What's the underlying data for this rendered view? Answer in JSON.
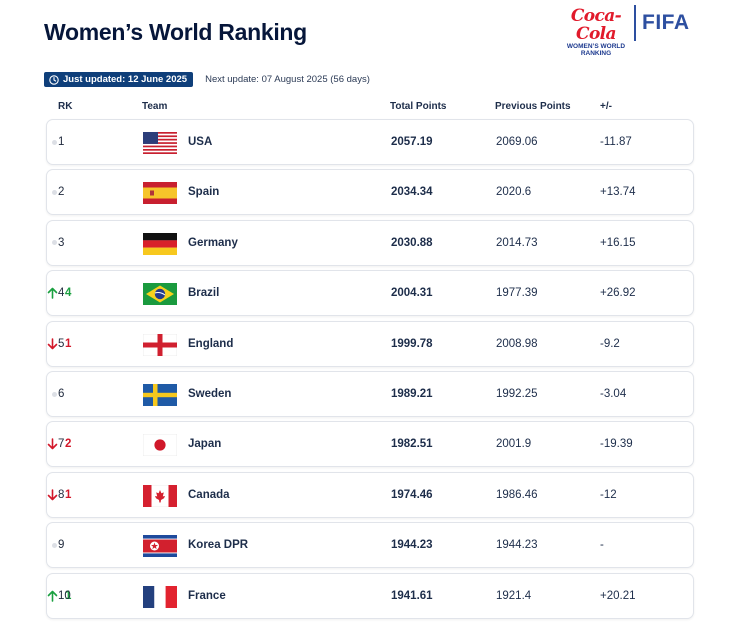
{
  "header": {
    "title": "Women’s World Ranking",
    "sponsor": {
      "brand": "Coca-Cola",
      "subtitle_line1": "WOMEN’S WORLD",
      "subtitle_line2": "RANKING",
      "org": "FIFA"
    }
  },
  "update": {
    "last_updated": "Just updated: 12 June 2025",
    "next_update": "Next update: 07 August 2025 (56 days)"
  },
  "columns": {
    "rank": "RK",
    "team": "Team",
    "total": "Total Points",
    "previous": "Previous Points",
    "diff": "+/-"
  },
  "colors": {
    "up": "#1aa040",
    "down": "#d3182a",
    "badge": "#0f3f7a",
    "title": "#06163a"
  },
  "rows": [
    {
      "rank": "1",
      "movement": {
        "dir": "none",
        "value": ""
      },
      "flag": "usa-flag",
      "team": "USA",
      "total": "2057.19",
      "previous": "2069.06",
      "diff": "-11.87"
    },
    {
      "rank": "2",
      "movement": {
        "dir": "none",
        "value": ""
      },
      "flag": "spain-flag",
      "team": "Spain",
      "total": "2034.34",
      "previous": "2020.6",
      "diff": "+13.74"
    },
    {
      "rank": "3",
      "movement": {
        "dir": "none",
        "value": ""
      },
      "flag": "germany-flag",
      "team": "Germany",
      "total": "2030.88",
      "previous": "2014.73",
      "diff": "+16.15"
    },
    {
      "rank": "4",
      "movement": {
        "dir": "up",
        "value": "4"
      },
      "flag": "brazil-flag",
      "team": "Brazil",
      "total": "2004.31",
      "previous": "1977.39",
      "diff": "+26.92"
    },
    {
      "rank": "5",
      "movement": {
        "dir": "down",
        "value": "1"
      },
      "flag": "england-flag",
      "team": "England",
      "total": "1999.78",
      "previous": "2008.98",
      "diff": "-9.2"
    },
    {
      "rank": "6",
      "movement": {
        "dir": "none",
        "value": ""
      },
      "flag": "sweden-flag",
      "team": "Sweden",
      "total": "1989.21",
      "previous": "1992.25",
      "diff": "-3.04"
    },
    {
      "rank": "7",
      "movement": {
        "dir": "down",
        "value": "2"
      },
      "flag": "japan-flag",
      "team": "Japan",
      "total": "1982.51",
      "previous": "2001.9",
      "diff": "-19.39"
    },
    {
      "rank": "8",
      "movement": {
        "dir": "down",
        "value": "1"
      },
      "flag": "canada-flag",
      "team": "Canada",
      "total": "1974.46",
      "previous": "1986.46",
      "diff": "-12"
    },
    {
      "rank": "9",
      "movement": {
        "dir": "none",
        "value": ""
      },
      "flag": "korea-dpr-flag",
      "team": "Korea DPR",
      "total": "1944.23",
      "previous": "1944.23",
      "diff": "-"
    },
    {
      "rank": "10",
      "movement": {
        "dir": "up",
        "value": "1"
      },
      "flag": "france-flag",
      "team": "France",
      "total": "1941.61",
      "previous": "1921.4",
      "diff": "+20.21"
    }
  ]
}
